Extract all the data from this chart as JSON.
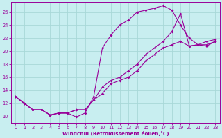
{
  "xlabel": "Windchill (Refroidissement éolien,°C)",
  "background_color": "#c8eef0",
  "line_color": "#990099",
  "grid_color": "#a8d8d8",
  "xlim": [
    -0.5,
    23.5
  ],
  "ylim": [
    9.0,
    27.5
  ],
  "yticks": [
    10,
    12,
    14,
    16,
    18,
    20,
    22,
    24,
    26
  ],
  "xticks": [
    0,
    1,
    2,
    3,
    4,
    5,
    6,
    7,
    8,
    9,
    10,
    11,
    12,
    13,
    14,
    15,
    16,
    17,
    18,
    19,
    20,
    21,
    22,
    23
  ],
  "series1_x": [
    0,
    1,
    2,
    3,
    4,
    5,
    6,
    7,
    8,
    9,
    10,
    11,
    12,
    13,
    14,
    15,
    16,
    17,
    18,
    19,
    20,
    21,
    22,
    23
  ],
  "series1_y": [
    13,
    12,
    11,
    11,
    10.2,
    10.5,
    10.5,
    9.9,
    10.5,
    13,
    20.5,
    22.5,
    24,
    24.8,
    26,
    26.3,
    26.6,
    27,
    26.3,
    24,
    22,
    21,
    20.8,
    21.5
  ],
  "series2_x": [
    0,
    1,
    2,
    3,
    4,
    5,
    6,
    7,
    8,
    9,
    10,
    11,
    12,
    13,
    14,
    15,
    16,
    17,
    18,
    19,
    20,
    21,
    22,
    23
  ],
  "series2_y": [
    13,
    12,
    11,
    11,
    10.2,
    10.5,
    10.5,
    11,
    11,
    12.5,
    14.5,
    15.5,
    16,
    17,
    18,
    19.5,
    20.5,
    21.5,
    23,
    25.8,
    20.8,
    21,
    21,
    21.5
  ],
  "series3_x": [
    0,
    1,
    2,
    3,
    4,
    5,
    6,
    7,
    8,
    9,
    10,
    11,
    12,
    13,
    14,
    15,
    16,
    17,
    18,
    19,
    20,
    21,
    22,
    23
  ],
  "series3_y": [
    13,
    12,
    11,
    11,
    10.2,
    10.5,
    10.5,
    11,
    11,
    12.5,
    13.5,
    15,
    15.5,
    16,
    17,
    18.5,
    19.5,
    20.5,
    21,
    21.5,
    20.8,
    21,
    21.5,
    21.8
  ]
}
